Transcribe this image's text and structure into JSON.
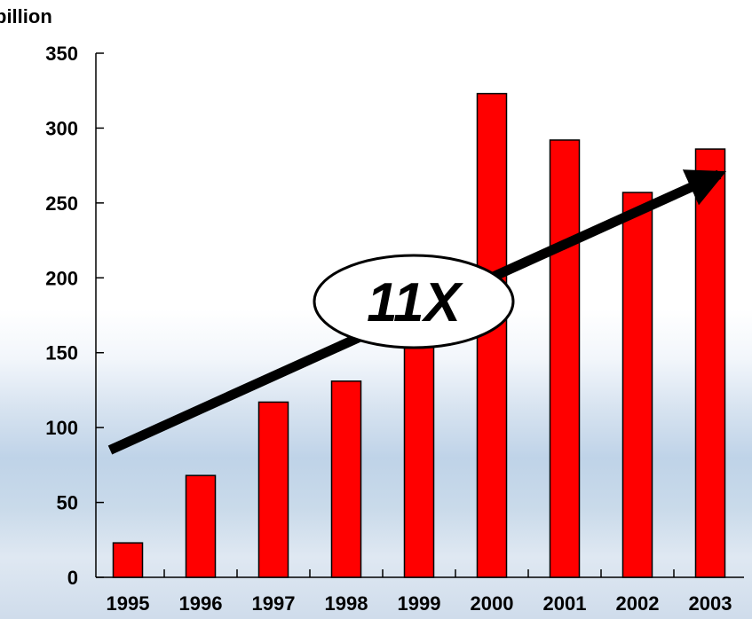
{
  "chart_data": {
    "type": "bar",
    "unit_label": "billion",
    "categories": [
      "1995",
      "1996",
      "1997",
      "1998",
      "1999",
      "2000",
      "2001",
      "2002",
      "2003"
    ],
    "values": [
      23,
      68,
      117,
      131,
      157,
      323,
      292,
      257,
      286
    ],
    "ylim": [
      0,
      350
    ],
    "yticks": [
      0,
      50,
      100,
      150,
      200,
      250,
      300,
      350
    ],
    "grid": false,
    "bar_color": "#ff0000",
    "annotation": {
      "text": "11X",
      "arrow_from": {
        "category": "1995",
        "value": 85
      },
      "arrow_to": {
        "category": "2003",
        "value": 269
      }
    }
  }
}
